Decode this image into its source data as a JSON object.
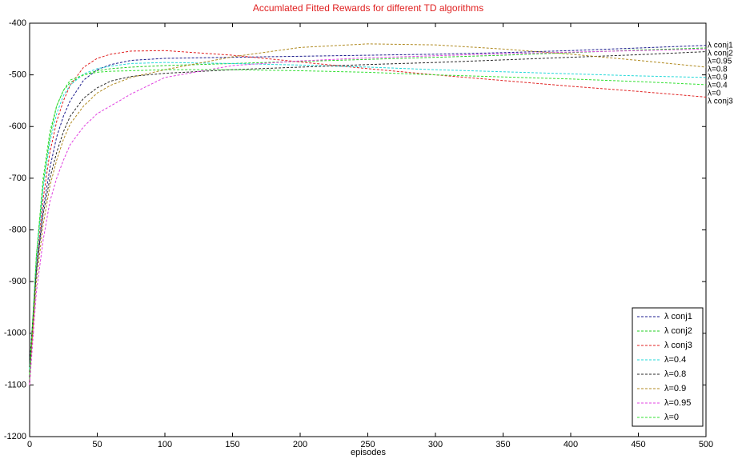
{
  "chart_data": {
    "type": "line",
    "title": "Accumlated Fitted Rewards for different TD algorithms",
    "xlabel": "episodes",
    "x": [
      0,
      5,
      10,
      15,
      20,
      25,
      30,
      40,
      50,
      60,
      75,
      100,
      150,
      200,
      250,
      300,
      350,
      400,
      450,
      500
    ],
    "series": [
      {
        "name": "λ conj1",
        "color": "#1a1a8c",
        "values": [
          -1080,
          -880,
          -760,
          -680,
          -620,
          -580,
          -550,
          -510,
          -490,
          -480,
          -472,
          -468,
          -466,
          -464,
          -462,
          -460,
          -457,
          -453,
          -448,
          -443
        ]
      },
      {
        "name": "λ conj2",
        "color": "#22cc22",
        "values": [
          -1090,
          -850,
          -710,
          -620,
          -560,
          -530,
          -515,
          -500,
          -492,
          -488,
          -485,
          -482,
          -478,
          -474,
          -470,
          -466,
          -462,
          -457,
          -452,
          -448
        ]
      },
      {
        "name": "λ conj3",
        "color": "#e02020",
        "values": [
          -1100,
          -870,
          -740,
          -650,
          -590,
          -550,
          -520,
          -485,
          -468,
          -460,
          -454,
          -453,
          -462,
          -475,
          -488,
          -500,
          -511,
          -522,
          -532,
          -543
        ]
      },
      {
        "name": "λ=0.4",
        "color": "#20d8d8",
        "values": [
          -1070,
          -860,
          -720,
          -630,
          -575,
          -540,
          -520,
          -498,
          -488,
          -483,
          -478,
          -476,
          -478,
          -481,
          -485,
          -490,
          -494,
          -498,
          -502,
          -505
        ]
      },
      {
        "name": "λ=0.8",
        "color": "#2a2a2a",
        "values": [
          -1060,
          -880,
          -770,
          -700,
          -650,
          -610,
          -580,
          -545,
          -525,
          -512,
          -503,
          -497,
          -490,
          -485,
          -480,
          -476,
          -471,
          -466,
          -461,
          -455
        ]
      },
      {
        "name": "λ=0.9",
        "color": "#b08a20",
        "values": [
          -1080,
          -900,
          -790,
          -715,
          -665,
          -625,
          -595,
          -560,
          -535,
          -520,
          -505,
          -490,
          -465,
          -447,
          -440,
          -442,
          -450,
          -460,
          -472,
          -485
        ]
      },
      {
        "name": "λ=0.95",
        "color": "#e040e0",
        "values": [
          -1100,
          -920,
          -820,
          -745,
          -700,
          -665,
          -635,
          -600,
          -575,
          -560,
          -537,
          -505,
          -482,
          -473,
          -467,
          -463,
          -459,
          -456,
          -453,
          -450
        ]
      },
      {
        "name": "λ=0",
        "color": "#30e030",
        "values": [
          -1080,
          -850,
          -700,
          -610,
          -560,
          -530,
          -510,
          -500,
          -495,
          -493,
          -492,
          -490,
          -490,
          -492,
          -495,
          -500,
          -504,
          -508,
          -513,
          -519
        ]
      }
    ],
    "xlim": [
      0,
      500
    ],
    "xticks": [
      0,
      50,
      100,
      150,
      200,
      250,
      300,
      350,
      400,
      450,
      500
    ],
    "ylim": [
      -1200,
      -400
    ],
    "yticks": [
      -1200,
      -1100,
      -1000,
      -900,
      -800,
      -700,
      -600,
      -500,
      -400
    ],
    "grid": false,
    "legend": "lower right"
  }
}
